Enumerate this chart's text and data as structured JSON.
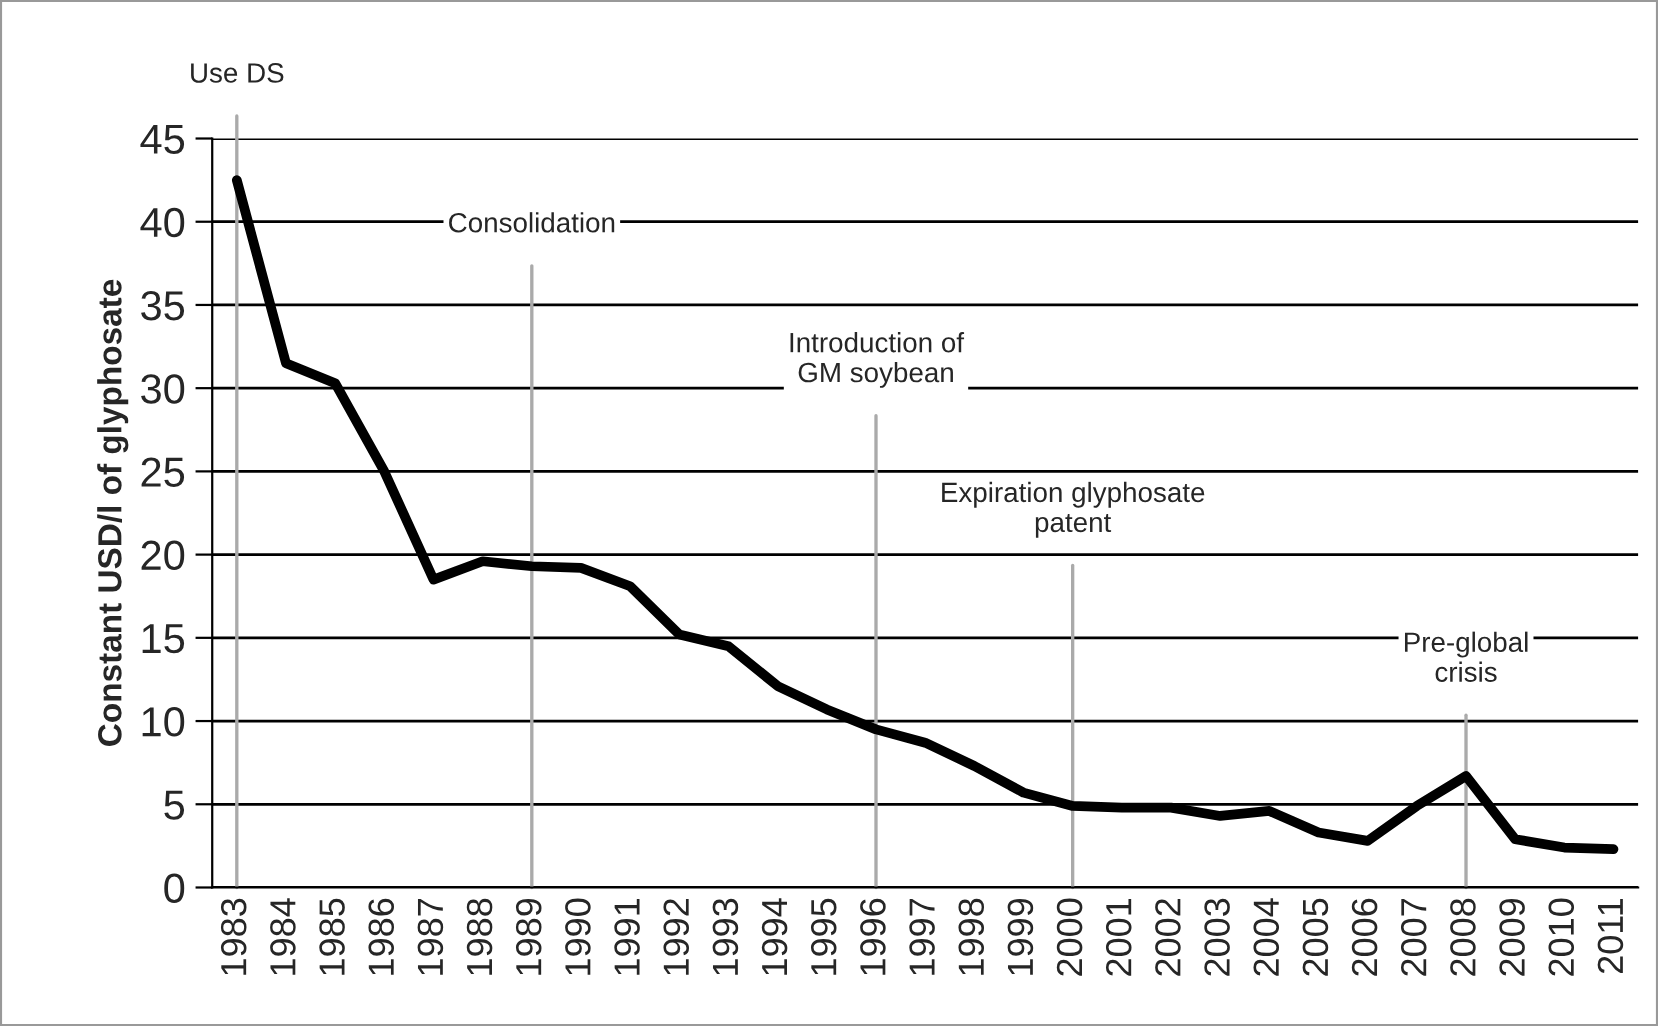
{
  "chart_data": {
    "type": "line",
    "ylabel": "Constant USD/l of glyphosate",
    "categories": [
      "1983",
      "1984",
      "1985",
      "1986",
      "1987",
      "1988",
      "1989",
      "1990",
      "1991",
      "1992",
      "1993",
      "1994",
      "1995",
      "1996",
      "1997",
      "1998",
      "1999",
      "2000",
      "2001",
      "2002",
      "2003",
      "2004",
      "2005",
      "2006",
      "2007",
      "2008",
      "2009",
      "2010",
      "2011"
    ],
    "series": [
      {
        "color": "#000000",
        "values": [
          42.5,
          31.5,
          30.3,
          25,
          18.5,
          19.6,
          19.3,
          19.2,
          18.1,
          15.2,
          14.5,
          12.1,
          10.7,
          9.5,
          8.7,
          7.3,
          5.7,
          4.9,
          4.8,
          4.8,
          4.3,
          4.6,
          3.3,
          2.8,
          4.9,
          6.7,
          2.9,
          2.4,
          2.3
        ]
      }
    ],
    "ylim": [
      0,
      45
    ],
    "yticks": [
      0,
      5,
      10,
      15,
      20,
      25,
      30,
      35,
      40,
      45
    ],
    "grid": "y",
    "marker": "none",
    "line_style": "solid",
    "legend": false,
    "ref_lines": [
      {
        "axis": "x",
        "value": "1983",
        "label": "Use DS",
        "color": "#aaaaaa"
      },
      {
        "axis": "x",
        "value": "1989",
        "label": "Consolidation",
        "color": "#aaaaaa"
      },
      {
        "axis": "x",
        "value": "1996",
        "label": "Introduction of\nGM soybean",
        "color": "#aaaaaa"
      },
      {
        "axis": "x",
        "value": "2000",
        "label": "Expiration glyphosate\npatent",
        "color": "#aaaaaa"
      },
      {
        "axis": "x",
        "value": "2008",
        "label": "Pre-global\ncrisis",
        "color": "#aaaaaa"
      }
    ]
  }
}
